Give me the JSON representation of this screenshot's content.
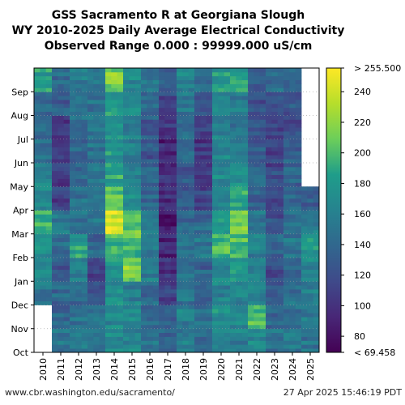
{
  "chart_data": {
    "type": "heatmap",
    "title_lines": [
      "GSS Sacramento R at Georgiana Slough",
      "WY 2010-2025 Daily Average Electrical Conductivity",
      "Observed Range 0.000 : 99999.000 uS/cm"
    ],
    "x_categories": [
      "2010",
      "2011",
      "2012",
      "2013",
      "2014",
      "2015",
      "2016",
      "2017",
      "2018",
      "2019",
      "2020",
      "2021",
      "2022",
      "2023",
      "2024",
      "2025"
    ],
    "y_months": [
      "Oct",
      "Nov",
      "Dec",
      "Jan",
      "Feb",
      "Mar",
      "Apr",
      "May",
      "Jun",
      "Jul",
      "Aug",
      "Sep"
    ],
    "colorbar": {
      "min": 69.458,
      "max": 255.5,
      "ticks": [
        80,
        100,
        120,
        140,
        160,
        180,
        200,
        220,
        240
      ],
      "min_label": "< 69.458",
      "max_label": "> 255.500",
      "colormap": [
        "#440154",
        "#482777",
        "#3f4a8a",
        "#31678e",
        "#26838f",
        "#1f9d8a",
        "#6cce5a",
        "#b6de2b",
        "#fee825"
      ]
    },
    "monthly_mean_estimates": {
      "2010": [
        null,
        null,
        150,
        170,
        175,
        195,
        165,
        160,
        150,
        150,
        145,
        180
      ],
      "2011": [
        150,
        135,
        140,
        130,
        140,
        150,
        110,
        105,
        100,
        100,
        130,
        140
      ],
      "2012": [
        150,
        150,
        140,
        160,
        185,
        150,
        145,
        140,
        135,
        145,
        150,
        160
      ],
      "2013": [
        145,
        150,
        125,
        115,
        140,
        150,
        145,
        150,
        150,
        155,
        145,
        150
      ],
      "2014": [
        170,
        165,
        170,
        175,
        195,
        240,
        205,
        190,
        180,
        170,
        175,
        215
      ],
      "2015": [
        165,
        170,
        160,
        215,
        200,
        210,
        175,
        165,
        155,
        160,
        165,
        170
      ],
      "2016": [
        150,
        145,
        140,
        160,
        155,
        150,
        140,
        135,
        125,
        130,
        140,
        150
      ],
      "2017": [
        140,
        140,
        115,
        95,
        90,
        85,
        100,
        95,
        90,
        105,
        120,
        130
      ],
      "2018": [
        155,
        160,
        150,
        150,
        145,
        140,
        130,
        130,
        140,
        150,
        155,
        165
      ],
      "2019": [
        145,
        150,
        135,
        135,
        150,
        140,
        115,
        110,
        105,
        110,
        130,
        145
      ],
      "2020": [
        165,
        170,
        160,
        165,
        200,
        180,
        170,
        165,
        165,
        160,
        170,
        180
      ],
      "2021": [
        160,
        165,
        165,
        175,
        200,
        210,
        185,
        175,
        155,
        150,
        155,
        185
      ],
      "2022": [
        170,
        200,
        165,
        160,
        155,
        150,
        135,
        135,
        130,
        125,
        120,
        130
      ],
      "2023": [
        145,
        140,
        130,
        120,
        135,
        120,
        110,
        115,
        110,
        105,
        120,
        140
      ],
      "2024": [
        150,
        150,
        145,
        140,
        150,
        150,
        140,
        135,
        130,
        125,
        130,
        145
      ],
      "2025": [
        150,
        155,
        160,
        165,
        175,
        155,
        130,
        null,
        null,
        null,
        null,
        null
      ]
    }
  },
  "footer": {
    "url": "www.cbr.washington.edu/sacramento/",
    "timestamp": "27 Apr 2025 15:46:19 PDT"
  }
}
